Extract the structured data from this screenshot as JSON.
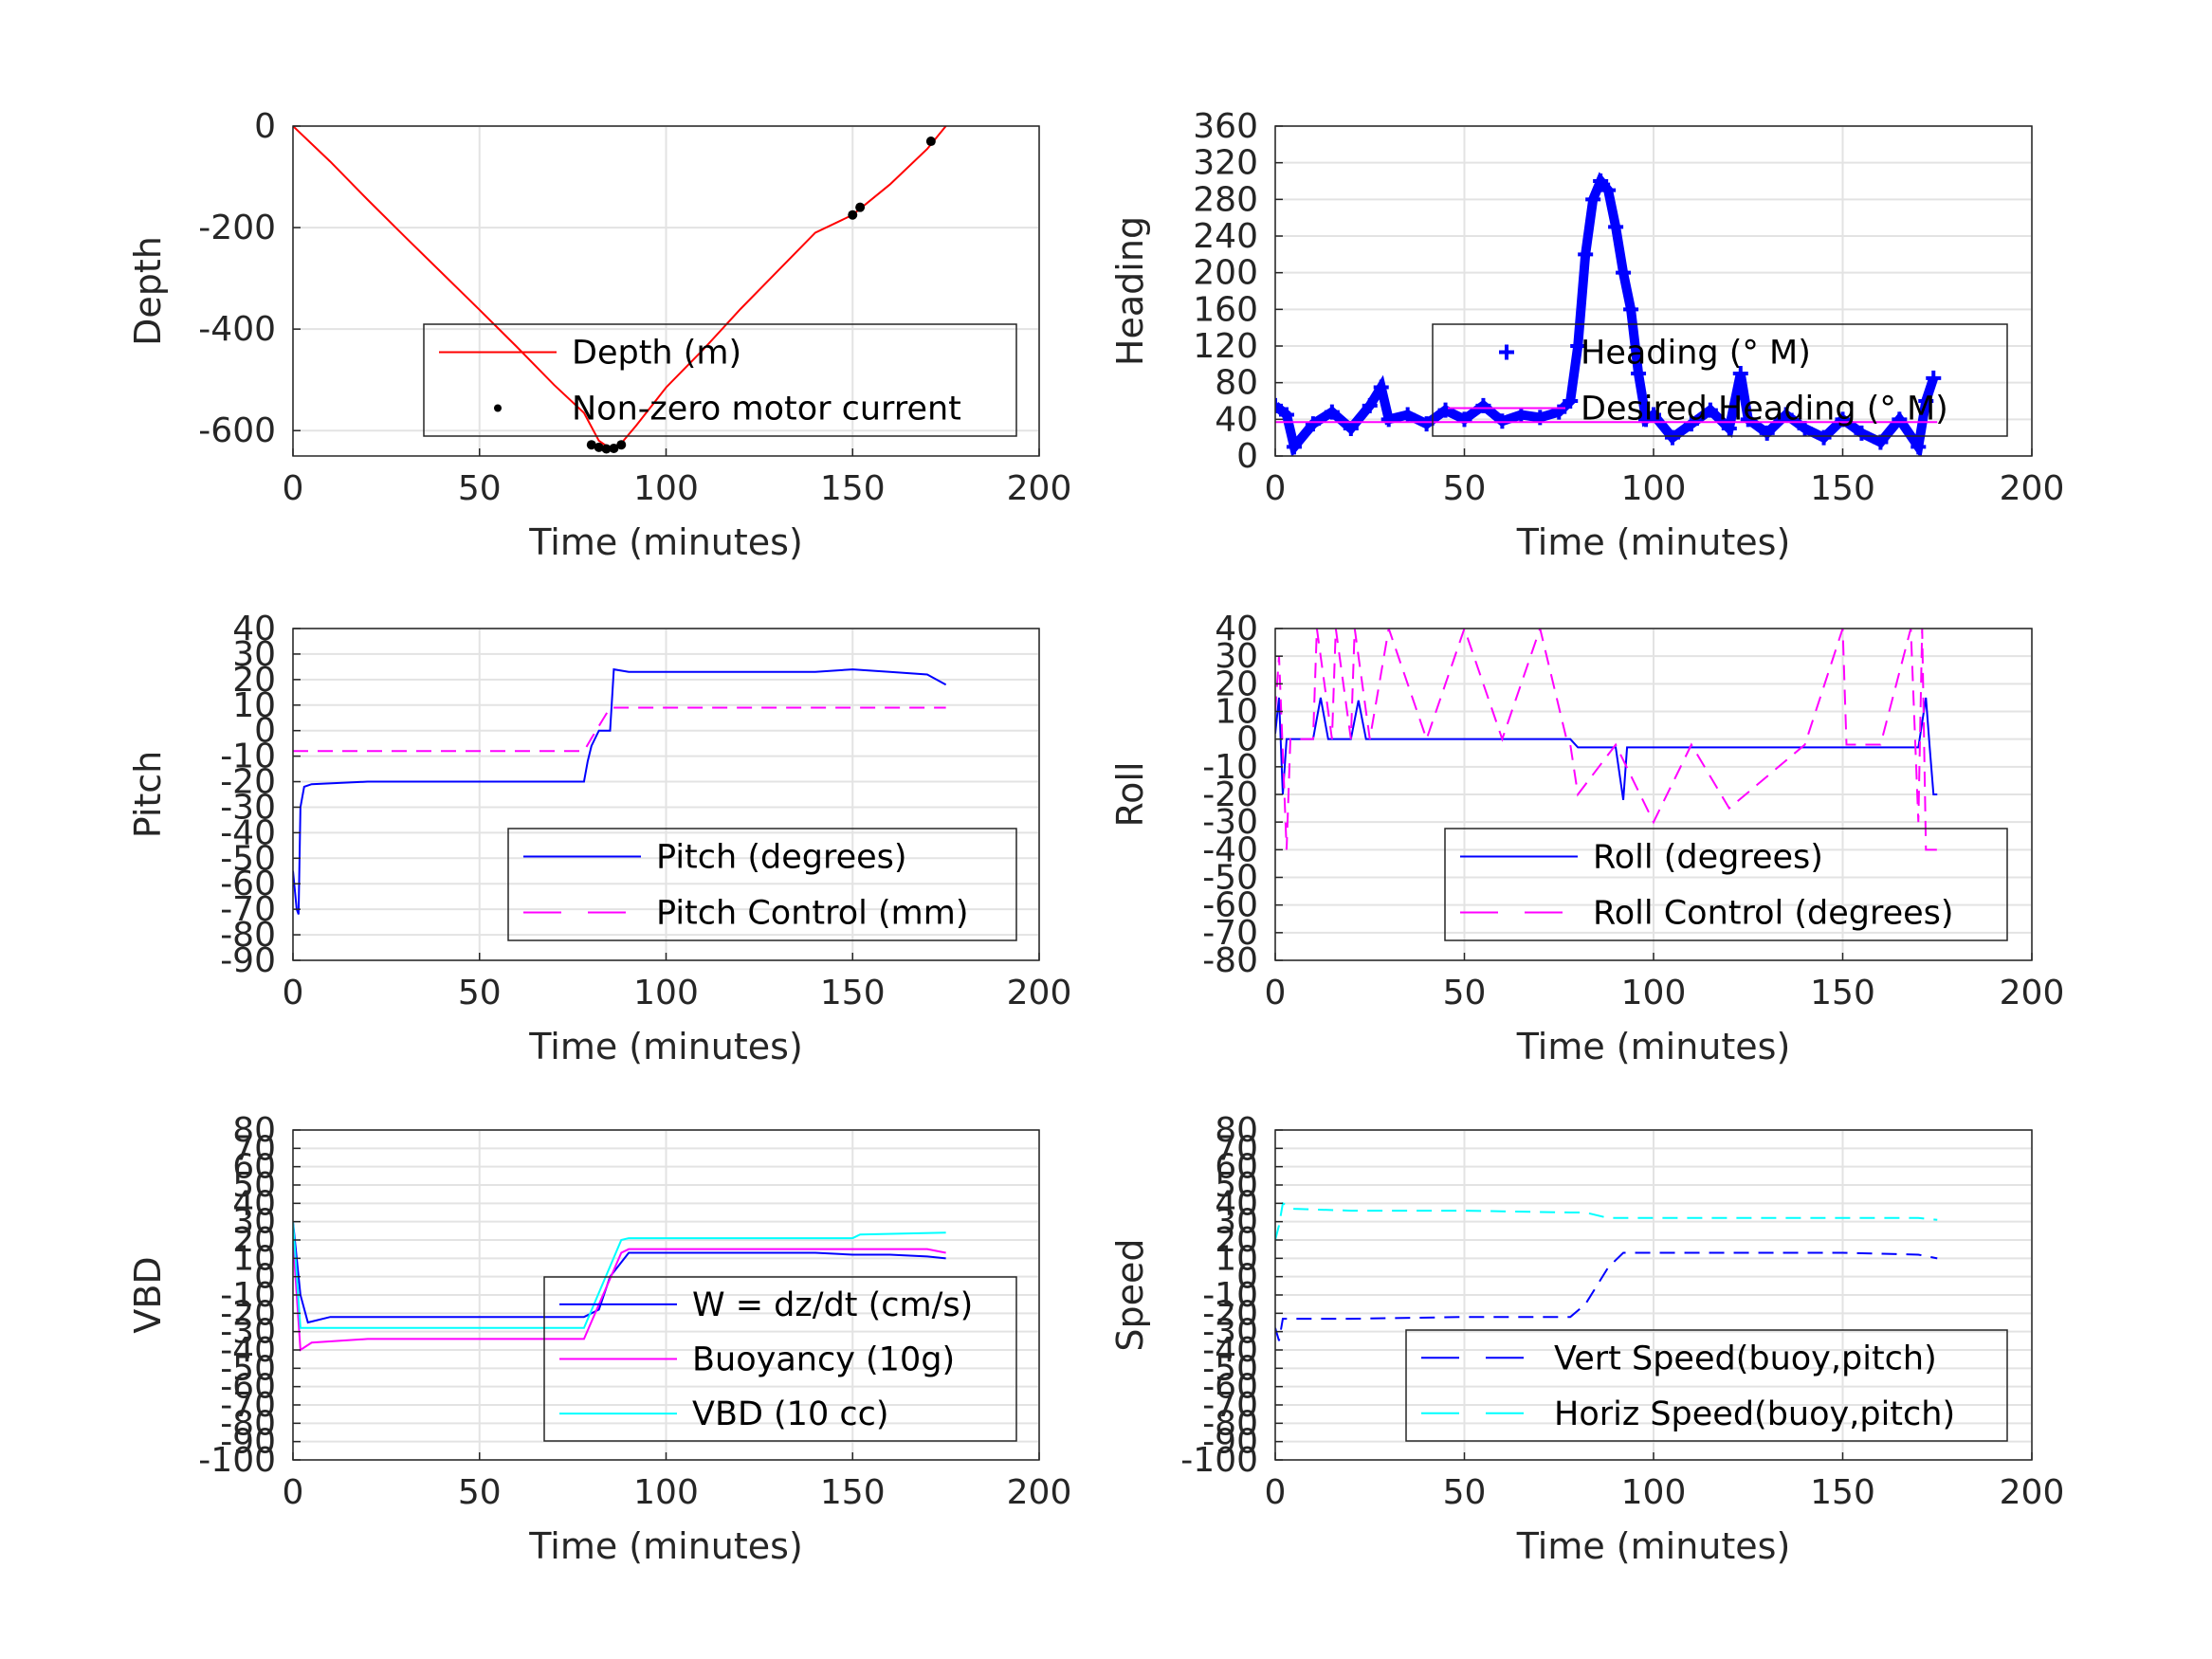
{
  "chart_data": [
    {
      "id": "depth",
      "type": "line",
      "xlabel": "Time (minutes)",
      "ylabel": "Depth",
      "xlim": [
        0,
        200
      ],
      "ylim": [
        -650,
        0
      ],
      "xticks": [
        0,
        50,
        100,
        150,
        200
      ],
      "yticks": [
        0,
        -200,
        -400,
        -600
      ],
      "xtick_labels": [
        "0",
        "50",
        "100",
        "150",
        "200"
      ],
      "ytick_labels": [
        "0",
        "-200",
        "-400",
        "-600"
      ],
      "grid": true,
      "legend_position": "lower-right",
      "series": [
        {
          "name": "Depth (m)",
          "color": "#ff0000",
          "style": "solid",
          "x": [
            0,
            10,
            20,
            30,
            40,
            50,
            60,
            70,
            78,
            82,
            85,
            88,
            92,
            100,
            110,
            120,
            130,
            140,
            150,
            160,
            170,
            175
          ],
          "y": [
            0,
            -70,
            -145,
            -218,
            -290,
            -362,
            -435,
            -510,
            -565,
            -620,
            -635,
            -625,
            -590,
            -515,
            -440,
            -360,
            -285,
            -210,
            -175,
            -115,
            -45,
            0
          ]
        },
        {
          "name": "Non-zero motor current",
          "color": "#000000",
          "style": "markers",
          "x": [
            80,
            82,
            84,
            86,
            88,
            150,
            152,
            171
          ],
          "y": [
            -628,
            -633,
            -636,
            -635,
            -628,
            -175,
            -160,
            -30
          ]
        }
      ]
    },
    {
      "id": "heading",
      "type": "line",
      "xlabel": "Time (minutes)",
      "ylabel": "Heading",
      "xlim": [
        0,
        200
      ],
      "ylim": [
        0,
        360
      ],
      "xticks": [
        0,
        50,
        100,
        150,
        200
      ],
      "yticks": [
        0,
        40,
        80,
        120,
        160,
        200,
        240,
        280,
        320,
        360
      ],
      "xtick_labels": [
        "0",
        "50",
        "100",
        "150",
        "200"
      ],
      "ytick_labels": [
        "0",
        "40",
        "80",
        "120",
        "160",
        "200",
        "240",
        "280",
        "320",
        "360"
      ],
      "grid": true,
      "legend_position": "upper-right",
      "series": [
        {
          "name": "Heading (° M)",
          "color": "#0000ff",
          "style": "plus",
          "x": [
            0,
            3,
            5,
            10,
            15,
            20,
            25,
            28,
            30,
            35,
            40,
            45,
            50,
            55,
            60,
            65,
            70,
            75,
            78,
            80,
            82,
            84,
            86,
            88,
            90,
            92,
            94,
            96,
            98,
            100,
            105,
            110,
            115,
            120,
            123,
            125,
            130,
            135,
            140,
            145,
            150,
            155,
            160,
            165,
            170,
            172,
            174
          ],
          "y": [
            55,
            45,
            10,
            35,
            48,
            30,
            55,
            75,
            40,
            45,
            35,
            50,
            40,
            55,
            38,
            45,
            42,
            48,
            60,
            120,
            220,
            280,
            300,
            290,
            250,
            200,
            160,
            90,
            40,
            45,
            20,
            35,
            50,
            30,
            90,
            40,
            25,
            45,
            30,
            20,
            40,
            25,
            15,
            40,
            10,
            60,
            85
          ]
        },
        {
          "name": "Desired Heading (° M)",
          "color": "#ff00ff",
          "style": "solid",
          "x": [
            0,
            175
          ],
          "y": [
            37,
            37
          ]
        }
      ]
    },
    {
      "id": "pitch",
      "type": "line",
      "xlabel": "Time (minutes)",
      "ylabel": "Pitch",
      "xlim": [
        0,
        200
      ],
      "ylim": [
        -90,
        40
      ],
      "xticks": [
        0,
        50,
        100,
        150,
        200
      ],
      "yticks": [
        40,
        30,
        20,
        10,
        0,
        -10,
        -20,
        -30,
        -40,
        -50,
        -60,
        -70,
        -80,
        -90
      ],
      "xtick_labels": [
        "0",
        "50",
        "100",
        "150",
        "200"
      ],
      "ytick_labels": [
        "40",
        "30",
        "20",
        "10",
        "0",
        "-10",
        "-20",
        "-30",
        "-40",
        "-50",
        "-60",
        "-70",
        "-80",
        "-90"
      ],
      "grid": true,
      "legend_position": "lower-right",
      "series": [
        {
          "name": "Pitch (degrees)",
          "color": "#0000ff",
          "style": "solid",
          "x": [
            0,
            1,
            1.5,
            2,
            3,
            5,
            20,
            40,
            60,
            78,
            79,
            80,
            82,
            85,
            86,
            90,
            100,
            120,
            140,
            150,
            160,
            170,
            175
          ],
          "y": [
            -55,
            -70,
            -72,
            -30,
            -22,
            -21,
            -20,
            -20,
            -20,
            -20,
            -12,
            -6,
            0,
            0,
            24,
            23,
            23,
            23,
            23,
            24,
            23,
            22,
            18
          ]
        },
        {
          "name": "Pitch Control (mm)",
          "color": "#ff00ff",
          "style": "dashed",
          "x": [
            0,
            78,
            80,
            85,
            86,
            175
          ],
          "y": [
            -8,
            -8,
            -3,
            9,
            9,
            9
          ]
        }
      ]
    },
    {
      "id": "roll",
      "type": "line",
      "xlabel": "Time (minutes)",
      "ylabel": "Roll",
      "xlim": [
        0,
        200
      ],
      "ylim": [
        -80,
        40
      ],
      "xticks": [
        0,
        50,
        100,
        150,
        200
      ],
      "yticks": [
        40,
        30,
        20,
        10,
        0,
        -10,
        -20,
        -30,
        -40,
        -50,
        -60,
        -70,
        -80
      ],
      "xtick_labels": [
        "0",
        "50",
        "100",
        "150",
        "200"
      ],
      "ytick_labels": [
        "40",
        "30",
        "20",
        "10",
        "0",
        "-10",
        "-20",
        "-30",
        "-40",
        "-50",
        "-60",
        "-70",
        "-80"
      ],
      "grid": true,
      "legend_position": "lower-right",
      "series": [
        {
          "name": "Roll (degrees)",
          "color": "#0000ff",
          "style": "solid",
          "x": [
            0,
            1,
            2,
            3,
            4,
            10,
            12,
            14,
            20,
            22,
            24,
            30,
            40,
            50,
            60,
            70,
            78,
            80,
            90,
            92,
            93,
            100,
            110,
            120,
            130,
            140,
            150,
            160,
            170,
            172,
            173,
            174,
            175
          ],
          "y": [
            2,
            15,
            -20,
            0,
            0,
            0,
            15,
            0,
            0,
            14,
            0,
            0,
            0,
            0,
            0,
            0,
            0,
            -3,
            -3,
            -22,
            -3,
            -3,
            -3,
            -3,
            -3,
            -3,
            -3,
            -3,
            -3,
            15,
            -3,
            -20,
            -20
          ]
        },
        {
          "name": "Roll Control (degrees)",
          "color": "#ff00ff",
          "style": "dashed",
          "x": [
            0,
            1,
            3,
            4,
            10,
            11,
            15,
            16,
            20,
            21,
            25,
            30,
            40,
            50,
            60,
            70,
            77,
            78,
            80,
            90,
            100,
            110,
            120,
            140,
            150,
            151,
            160,
            168,
            170,
            171,
            172,
            175
          ],
          "y": [
            10,
            30,
            -40,
            0,
            0,
            40,
            0,
            40,
            0,
            40,
            0,
            40,
            0,
            40,
            0,
            40,
            0,
            -2,
            -20,
            -2,
            -30,
            -2,
            -25,
            -2,
            40,
            -2,
            -2,
            40,
            -30,
            40,
            -40,
            -40
          ]
        }
      ]
    },
    {
      "id": "vbd",
      "type": "line",
      "xlabel": "Time (minutes)",
      "ylabel": "VBD",
      "xlim": [
        0,
        200
      ],
      "ylim": [
        -100,
        80
      ],
      "xticks": [
        0,
        50,
        100,
        150,
        200
      ],
      "yticks": [
        -100,
        80
      ],
      "xtick_labels": [
        "0",
        "50",
        "100",
        "150",
        "200"
      ],
      "ytick_labels": [
        "-100",
        "80"
      ],
      "grid": true,
      "legend_position": "lower-right",
      "series": [
        {
          "name": "W = dz/dt (cm/s)",
          "color": "#0000ff",
          "style": "solid",
          "x": [
            0,
            2,
            4,
            10,
            30,
            50,
            70,
            78,
            82,
            85,
            90,
            100,
            120,
            140,
            150,
            160,
            170,
            175
          ],
          "y": [
            30,
            -10,
            -25,
            -22,
            -22,
            -22,
            -22,
            -22,
            -18,
            0,
            13,
            13,
            13,
            13,
            12,
            12,
            11,
            10
          ]
        },
        {
          "name": "Buoyancy (10g)",
          "color": "#ff00ff",
          "style": "solid",
          "x": [
            0,
            2,
            5,
            20,
            50,
            78,
            88,
            90,
            120,
            150,
            170,
            175
          ],
          "y": [
            20,
            -40,
            -36,
            -34,
            -34,
            -34,
            13,
            15,
            15,
            15,
            15,
            13
          ]
        },
        {
          "name": "VBD (10 cc)",
          "color": "#00ffff",
          "style": "solid",
          "x": [
            0,
            2,
            5,
            20,
            50,
            78,
            88,
            90,
            120,
            150,
            152,
            175
          ],
          "y": [
            30,
            -28,
            -28,
            -28,
            -28,
            -28,
            20,
            21,
            21,
            21,
            23,
            24
          ]
        }
      ]
    },
    {
      "id": "speed",
      "type": "line",
      "xlabel": "Time (minutes)",
      "ylabel": "Speed",
      "xlim": [
        0,
        200
      ],
      "ylim": [
        -100,
        80
      ],
      "xticks": [
        0,
        50,
        100,
        150,
        200
      ],
      "yticks": [
        -100,
        80
      ],
      "xtick_labels": [
        "0",
        "50",
        "100",
        "150",
        "200"
      ],
      "ytick_labels": [
        "-100",
        "80"
      ],
      "grid": true,
      "legend_position": "lower-right",
      "series": [
        {
          "name": "Vert Speed(buoy,pitch)",
          "color": "#0000ff",
          "style": "dashed",
          "x": [
            0,
            1,
            2,
            4,
            20,
            50,
            78,
            82,
            88,
            92,
            100,
            120,
            150,
            170,
            175
          ],
          "y": [
            -28,
            -35,
            -23,
            -23,
            -23,
            -22,
            -22,
            -15,
            5,
            13,
            13,
            13,
            13,
            12,
            10
          ]
        },
        {
          "name": "Horiz Speed(buoy,pitch)",
          "color": "#00ffff",
          "style": "dashed",
          "x": [
            0,
            1,
            2,
            5,
            20,
            50,
            78,
            82,
            88,
            92,
            100,
            120,
            150,
            170,
            175
          ],
          "y": [
            20,
            28,
            40,
            37,
            36,
            36,
            35,
            35,
            32,
            32,
            32,
            32,
            32,
            32,
            31
          ]
        }
      ]
    }
  ]
}
